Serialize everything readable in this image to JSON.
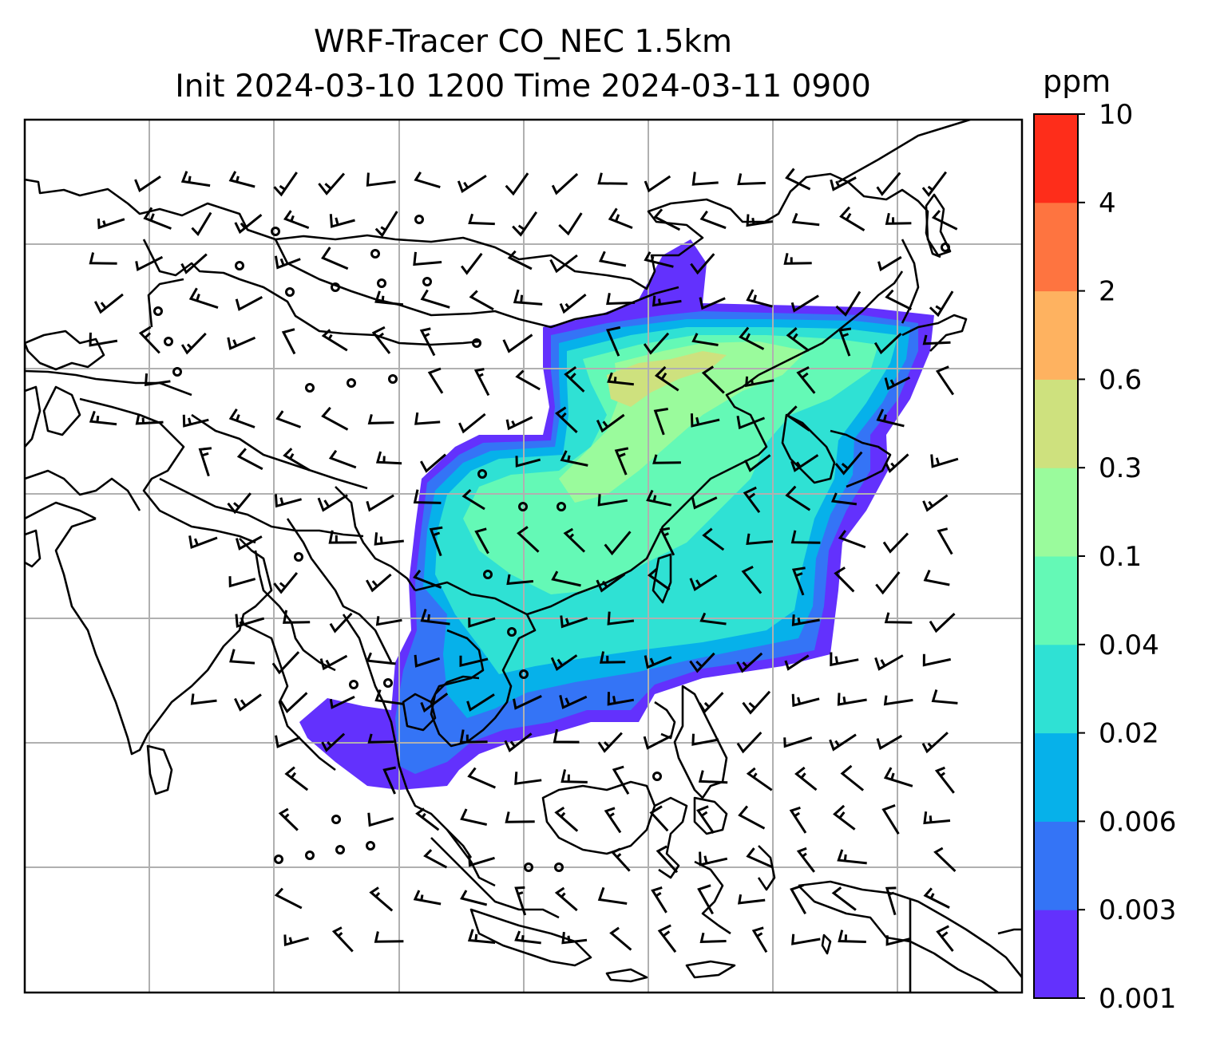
{
  "title_line1": "WRF-Tracer CO_NEC 1.5km",
  "title_line2": "Init 2024-03-10 1200 Time 2024-03-11 0900",
  "colorbar": {
    "unit": "ppm",
    "levels": [
      "0.001",
      "0.003",
      "0.006",
      "0.02",
      "0.04",
      "0.1",
      "0.3",
      "0.6",
      "2",
      "4",
      "10"
    ],
    "colors": [
      "#6331fd",
      "#3474f6",
      "#06b1ea",
      "#2fe1d4",
      "#64f9b6",
      "#9afb9c",
      "#cee17e",
      "#feb260",
      "#fe7440",
      "#fe2d1a"
    ]
  },
  "map": {
    "field": "CO_NEC tracer concentration",
    "wind_display": "wind barbs",
    "plume_colors": {
      "edge": "#6331fd",
      "low": "#3474f6",
      "mid": "#06b1ea",
      "main": "#2fe1d4",
      "high": "#64f9b6",
      "core": "#9afb9c",
      "peak": "#cee17e"
    }
  }
}
